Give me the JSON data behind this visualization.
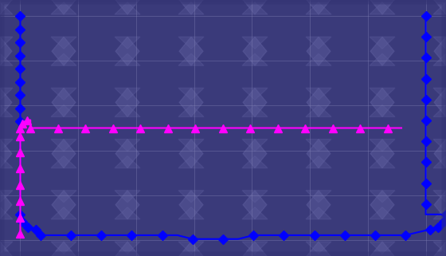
{
  "bg_color": "#4a4a8a",
  "outer_bg": "#3a3a7a",
  "blue_color": "#0000ff",
  "magenta_color": "#ff00ff",
  "pattern_color": "#6060a0",
  "figsize": [
    5.6,
    3.21
  ],
  "dpi": 100,
  "n_grid_cols": 7,
  "n_grid_rows": 5,
  "marker_size_blue": 6,
  "marker_size_mag": 7,
  "linewidth": 1.5
}
